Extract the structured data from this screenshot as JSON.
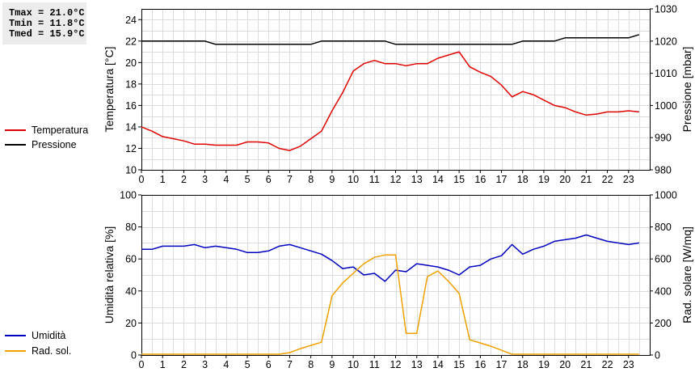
{
  "stats": {
    "tmax": "Tmax = 21.0°C",
    "tmin": "Tmin = 11.8°C",
    "tmed": "Tmed = 15.9°C"
  },
  "legend_top": [
    {
      "label": "Temperatura",
      "color": "#e00000"
    },
    {
      "label": "Pressione",
      "color": "#000000"
    }
  ],
  "legend_bottom": [
    {
      "label": "Umidità",
      "color": "#0000c0"
    },
    {
      "label": "Rad. sol.",
      "color": "#f0a000"
    }
  ],
  "chart_data": [
    {
      "type": "line",
      "x_ticks": [
        0,
        1,
        2,
        3,
        4,
        5,
        6,
        7,
        8,
        9,
        10,
        11,
        12,
        13,
        14,
        15,
        16,
        17,
        18,
        19,
        20,
        21,
        22,
        23
      ],
      "xlim": [
        0,
        24
      ],
      "grid": true,
      "y_left": {
        "label": "Temperatura [°C]",
        "lim": [
          10,
          25
        ],
        "ticks": [
          10,
          12,
          14,
          16,
          18,
          20,
          22,
          24
        ]
      },
      "y_right": {
        "label": "Pressione [mbar]",
        "lim": [
          980,
          1030
        ],
        "ticks": [
          980,
          990,
          1000,
          1010,
          1020,
          1030
        ]
      },
      "series": [
        {
          "name": "Temperatura",
          "color": "#e00000",
          "axis": "left",
          "points": [
            [
              0,
              14.0
            ],
            [
              0.5,
              13.6
            ],
            [
              1,
              13.1
            ],
            [
              1.5,
              12.9
            ],
            [
              2,
              12.7
            ],
            [
              2.5,
              12.4
            ],
            [
              3,
              12.4
            ],
            [
              3.5,
              12.3
            ],
            [
              4,
              12.3
            ],
            [
              4.5,
              12.3
            ],
            [
              5,
              12.6
            ],
            [
              5.5,
              12.6
            ],
            [
              6,
              12.5
            ],
            [
              6.5,
              12.0
            ],
            [
              7,
              11.8
            ],
            [
              7.5,
              12.2
            ],
            [
              8,
              12.9
            ],
            [
              8.5,
              13.6
            ],
            [
              9,
              15.5
            ],
            [
              9.5,
              17.2
            ],
            [
              10,
              19.2
            ],
            [
              10.5,
              19.9
            ],
            [
              11,
              20.2
            ],
            [
              11.5,
              19.9
            ],
            [
              12,
              19.9
            ],
            [
              12.5,
              19.7
            ],
            [
              13,
              19.9
            ],
            [
              13.5,
              19.9
            ],
            [
              14,
              20.4
            ],
            [
              14.5,
              20.7
            ],
            [
              15,
              21.0
            ],
            [
              15.5,
              19.6
            ],
            [
              16,
              19.1
            ],
            [
              16.5,
              18.7
            ],
            [
              17,
              17.9
            ],
            [
              17.5,
              16.8
            ],
            [
              18,
              17.3
            ],
            [
              18.5,
              17.0
            ],
            [
              19,
              16.5
            ],
            [
              19.5,
              16.0
            ],
            [
              20,
              15.8
            ],
            [
              20.5,
              15.4
            ],
            [
              21,
              15.1
            ],
            [
              21.5,
              15.2
            ],
            [
              22,
              15.4
            ],
            [
              22.5,
              15.4
            ],
            [
              23,
              15.5
            ],
            [
              23.5,
              15.4
            ]
          ]
        },
        {
          "name": "Pressione",
          "color": "#000000",
          "axis": "right",
          "points": [
            [
              0,
              1020
            ],
            [
              1,
              1020
            ],
            [
              2,
              1020
            ],
            [
              3,
              1020
            ],
            [
              3.5,
              1019
            ],
            [
              4,
              1019
            ],
            [
              5,
              1019
            ],
            [
              6,
              1019
            ],
            [
              7,
              1019
            ],
            [
              8,
              1019
            ],
            [
              8.5,
              1020
            ],
            [
              9,
              1020
            ],
            [
              10,
              1020
            ],
            [
              11,
              1020
            ],
            [
              11.5,
              1020
            ],
            [
              12,
              1019
            ],
            [
              13,
              1019
            ],
            [
              14,
              1019
            ],
            [
              15,
              1019
            ],
            [
              16,
              1019
            ],
            [
              17,
              1019
            ],
            [
              17.5,
              1019
            ],
            [
              18,
              1020
            ],
            [
              19,
              1020
            ],
            [
              19.5,
              1020
            ],
            [
              20,
              1021
            ],
            [
              21,
              1021
            ],
            [
              22,
              1021
            ],
            [
              23,
              1021
            ],
            [
              23.5,
              1022
            ]
          ]
        }
      ]
    },
    {
      "type": "line",
      "x_ticks": [
        0,
        1,
        2,
        3,
        4,
        5,
        6,
        7,
        8,
        9,
        10,
        11,
        12,
        13,
        14,
        15,
        16,
        17,
        18,
        19,
        20,
        21,
        22,
        23
      ],
      "xlim": [
        0,
        24
      ],
      "grid": true,
      "y_left": {
        "label": "Umidità relativa [%]",
        "lim": [
          0,
          100
        ],
        "ticks": [
          0,
          20,
          40,
          60,
          80,
          100
        ]
      },
      "y_right": {
        "label": "Rad. solare [W/mq]",
        "lim": [
          0,
          1000
        ],
        "ticks": [
          0,
          200,
          400,
          600,
          800,
          1000
        ]
      },
      "series": [
        {
          "name": "Umidità",
          "color": "#0000c0",
          "axis": "left",
          "points": [
            [
              0,
              66
            ],
            [
              0.5,
              66
            ],
            [
              1,
              68
            ],
            [
              1.5,
              68
            ],
            [
              2,
              68
            ],
            [
              2.5,
              69
            ],
            [
              3,
              67
            ],
            [
              3.5,
              68
            ],
            [
              4,
              67
            ],
            [
              4.5,
              66
            ],
            [
              5,
              64
            ],
            [
              5.5,
              64
            ],
            [
              6,
              65
            ],
            [
              6.5,
              68
            ],
            [
              7,
              69
            ],
            [
              7.5,
              67
            ],
            [
              8,
              65
            ],
            [
              8.5,
              63
            ],
            [
              9,
              59
            ],
            [
              9.5,
              54
            ],
            [
              10,
              55
            ],
            [
              10.5,
              50
            ],
            [
              11,
              51
            ],
            [
              11.5,
              46
            ],
            [
              12,
              53
            ],
            [
              12.5,
              52
            ],
            [
              13,
              57
            ],
            [
              13.5,
              56
            ],
            [
              14,
              55
            ],
            [
              14.5,
              53
            ],
            [
              15,
              50
            ],
            [
              15.5,
              55
            ],
            [
              16,
              56
            ],
            [
              16.5,
              60
            ],
            [
              17,
              62
            ],
            [
              17.5,
              69
            ],
            [
              18,
              63
            ],
            [
              18.5,
              66
            ],
            [
              19,
              68
            ],
            [
              19.5,
              71
            ],
            [
              20,
              72
            ],
            [
              20.5,
              73
            ],
            [
              21,
              75
            ],
            [
              21.5,
              73
            ],
            [
              22,
              71
            ],
            [
              22.5,
              70
            ],
            [
              23,
              69
            ],
            [
              23.5,
              70
            ]
          ]
        },
        {
          "name": "Rad. sol.",
          "color": "#f0a000",
          "axis": "right",
          "points": [
            [
              0,
              5
            ],
            [
              1,
              5
            ],
            [
              2,
              5
            ],
            [
              3,
              5
            ],
            [
              4,
              5
            ],
            [
              5,
              5
            ],
            [
              6,
              5
            ],
            [
              6.5,
              5
            ],
            [
              7,
              15
            ],
            [
              7.5,
              40
            ],
            [
              8,
              60
            ],
            [
              8.5,
              80
            ],
            [
              9,
              370
            ],
            [
              9.5,
              450
            ],
            [
              10,
              510
            ],
            [
              10.5,
              570
            ],
            [
              11,
              610
            ],
            [
              11.5,
              625
            ],
            [
              12,
              625
            ],
            [
              12.5,
              135
            ],
            [
              13,
              135
            ],
            [
              13.5,
              490
            ],
            [
              14,
              525
            ],
            [
              14.5,
              460
            ],
            [
              15,
              385
            ],
            [
              15.5,
              95
            ],
            [
              16,
              75
            ],
            [
              16.5,
              55
            ],
            [
              17,
              30
            ],
            [
              17.5,
              5
            ],
            [
              18,
              5
            ],
            [
              19,
              5
            ],
            [
              20,
              5
            ],
            [
              21,
              5
            ],
            [
              22,
              5
            ],
            [
              23,
              5
            ],
            [
              23.5,
              5
            ]
          ]
        }
      ]
    }
  ]
}
